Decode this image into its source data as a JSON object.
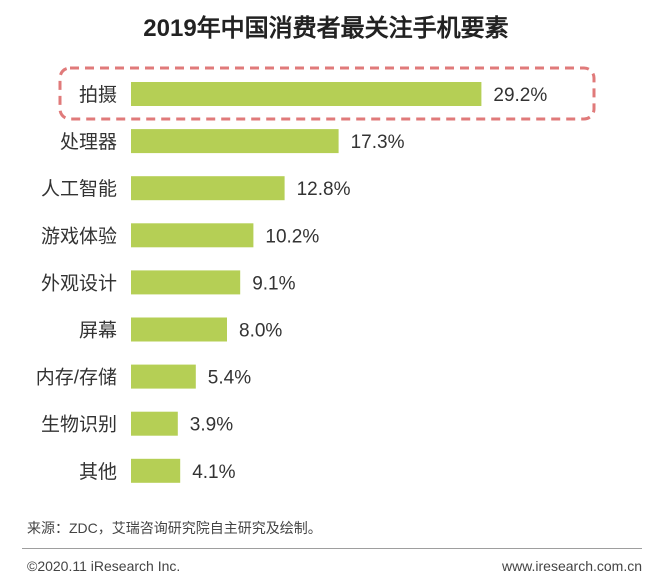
{
  "title": "2019年中国消费者最关注手机要素",
  "chart_data": {
    "type": "bar",
    "orientation": "horizontal",
    "categories": [
      "拍摄",
      "处理器",
      "人工智能",
      "游戏体验",
      "外观设计",
      "屏幕",
      "内存/存储",
      "生物识别",
      "其他"
    ],
    "values": [
      29.2,
      17.3,
      12.8,
      10.2,
      9.1,
      8.0,
      5.4,
      3.9,
      4.1
    ],
    "value_labels": [
      "29.2%",
      "17.3%",
      "12.8%",
      "10.2%",
      "9.1%",
      "8.0%",
      "5.4%",
      "3.9%",
      "4.1%"
    ],
    "highlighted_category": "拍摄",
    "bar_color": "#b5cf55",
    "highlight_border_color": "#e07a7a",
    "grid": false,
    "legend": "none"
  },
  "footer": {
    "source": "来源：ZDC，艾瑞咨询研究院自主研究及绘制。",
    "copyright": "©2020.11 iResearch Inc.",
    "website": "www.iresearch.com.cn"
  }
}
